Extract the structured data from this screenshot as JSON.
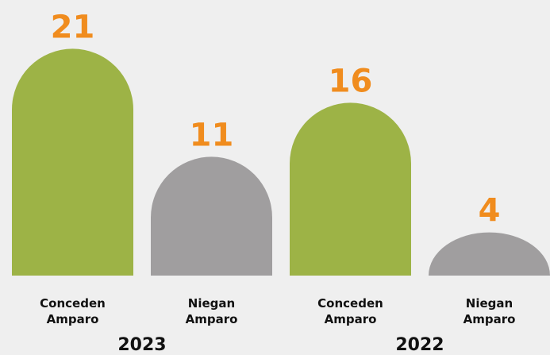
{
  "chart_data": {
    "type": "bar",
    "categories": [
      "Conceden Amparo",
      "Niegan Amparo",
      "Conceden Amparo",
      "Niegan Amparo"
    ],
    "values": [
      21,
      11,
      16,
      4
    ],
    "colors": [
      "#9db346",
      "#a09e9f",
      "#9db346",
      "#a09e9f"
    ],
    "value_label_color": "#f08c1e",
    "groups": [
      "2023",
      "2022"
    ]
  }
}
